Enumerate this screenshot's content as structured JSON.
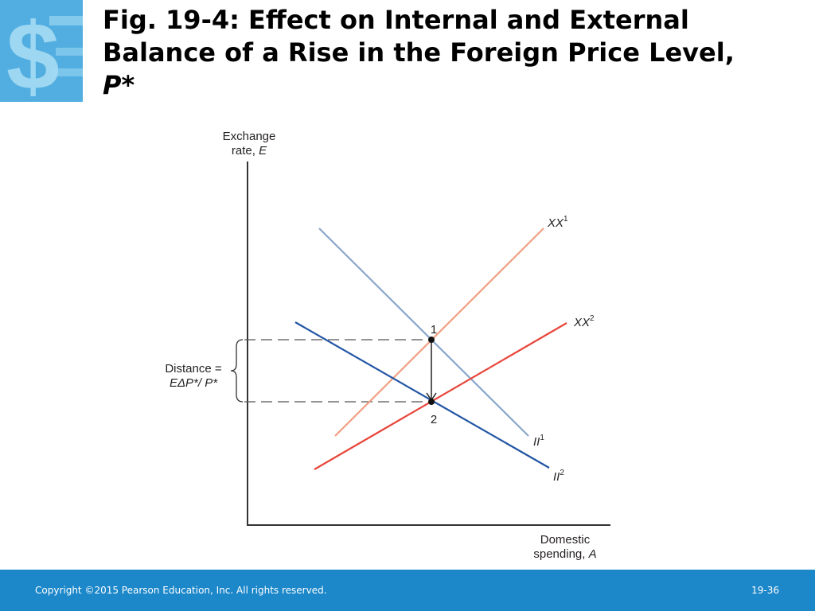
{
  "slide": {
    "title_line1": "Fig. 19-4: Effect on Internal and External",
    "title_line2": "Balance of a Rise in the Foreign Price Level,",
    "title_line3": "P*",
    "logo_icon": "dollar-sign-icon"
  },
  "diagram": {
    "y_axis_label_1": "Exchange",
    "y_axis_label_2": "rate, ",
    "y_axis_var": "E",
    "x_axis_label_1": "Domestic",
    "x_axis_label_2": "spending, ",
    "x_axis_var": "A",
    "curves": {
      "xx1": {
        "name": "XX",
        "sup": "1",
        "color": "#f0a080"
      },
      "xx2": {
        "name": "XX",
        "sup": "2",
        "color": "#e8463a"
      },
      "ii1": {
        "name": "II",
        "sup": "1",
        "color": "#8aa6cc"
      },
      "ii2": {
        "name": "II",
        "sup": "2",
        "color": "#2255a4"
      }
    },
    "point1_label": "1",
    "point2_label": "2",
    "distance_label_1": "Distance =",
    "distance_label_2": "EΔP*/ P*"
  },
  "footer": {
    "copyright": "Copyright ©2015 Pearson Education, Inc. All rights reserved.",
    "slide_number": "19-36",
    "color": "#1c87c9"
  }
}
